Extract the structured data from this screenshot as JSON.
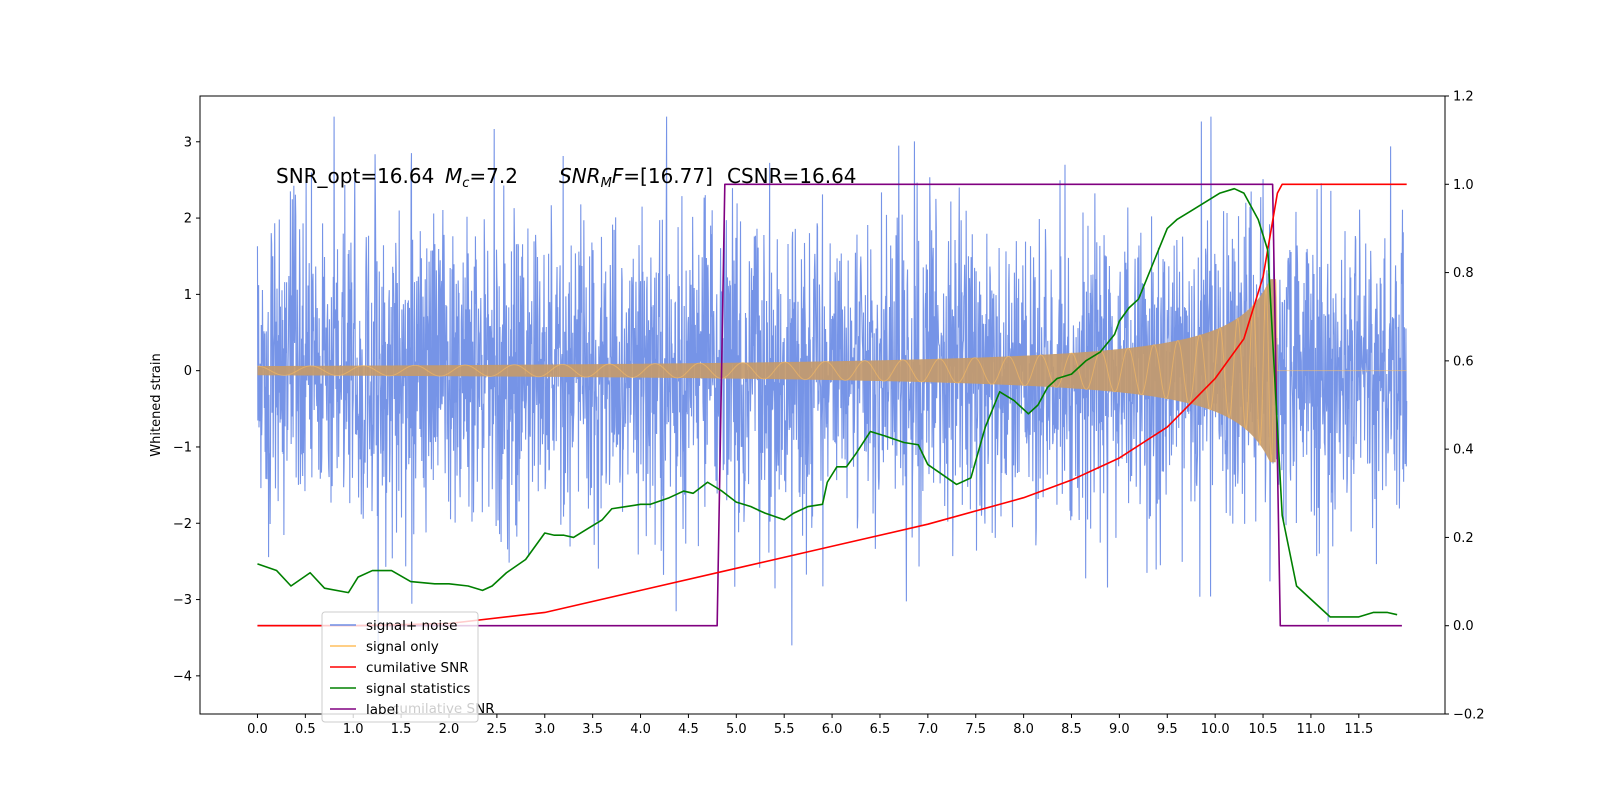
{
  "chart_data": {
    "type": "line",
    "ylabel": "Whitened strain",
    "xlim": [
      -0.6,
      12.4
    ],
    "ylim_left": [
      -4.5,
      3.6
    ],
    "ylim_right": [
      -0.2,
      1.2
    ],
    "x_ticks": [
      "0.0",
      "0.5",
      "1.0",
      "1.5",
      "2.0",
      "2.5",
      "3.0",
      "3.5",
      "4.0",
      "4.5",
      "5.0",
      "5.5",
      "6.0",
      "6.5",
      "7.0",
      "7.5",
      "8.0",
      "8.5",
      "9.0",
      "9.5",
      "10.0",
      "10.5",
      "11.0",
      "11.5"
    ],
    "y_ticks_left": [
      "3",
      "2",
      "1",
      "0",
      "−1",
      "−2",
      "−3",
      "−4"
    ],
    "y_ticks_right": [
      "1.2",
      "1.0",
      "0.8",
      "0.6",
      "0.4",
      "0.2",
      "0.0",
      "−0.2"
    ],
    "annotation": {
      "snr_opt": "SNR_opt=16.64",
      "mc_sym": "M",
      "mc_sub": "c",
      "mc_val": "=7.2",
      "snr_sym": "SNR",
      "snr_sub": "M",
      "snr_f": "F",
      "snr_val": "=[16.77]",
      "csnr": "CSNR=16.64"
    },
    "legend": {
      "position": "lower-left",
      "entries": [
        {
          "label": "signal+ noise",
          "color": "#6f8ee6"
        },
        {
          "label": "signal only",
          "color": "#ffbf5f"
        },
        {
          "label": "cumilative SNR",
          "color": "#ff0000"
        },
        {
          "label": "signal statistics",
          "color": "#008000"
        },
        {
          "label": "label",
          "color": "#800080"
        }
      ],
      "hidden_text": "cumilative SNR"
    },
    "series": [
      {
        "name": "signal+ noise",
        "axis": "left",
        "color": "#6f8ee6",
        "description": "Whitened noisy strain, x 0 to 12, amplitude approx. -3.7 to 3.3",
        "x_range": [
          0,
          12
        ],
        "typical_peak": 2.4,
        "max": 3.33,
        "min": -3.72
      },
      {
        "name": "signal only",
        "axis": "left",
        "color": "#ffbf5f",
        "description": "Chirp waveform growing to merger near x=10.65, zero after",
        "x_range": [
          0,
          12
        ],
        "merger_x": 10.65,
        "peak_amplitude": 1.2
      },
      {
        "name": "cumilative SNR",
        "axis": "right",
        "color": "#ff0000",
        "x": [
          0.0,
          1.0,
          2.0,
          3.0,
          4.0,
          5.0,
          6.0,
          7.0,
          8.0,
          8.5,
          9.0,
          9.5,
          10.0,
          10.3,
          10.5,
          10.65,
          10.7,
          12.0
        ],
        "y": [
          0.0,
          0.0,
          0.005,
          0.03,
          0.08,
          0.13,
          0.18,
          0.23,
          0.29,
          0.33,
          0.38,
          0.45,
          0.56,
          0.65,
          0.79,
          0.98,
          1.0,
          1.0
        ]
      },
      {
        "name": "signal statistics",
        "axis": "right",
        "color": "#008000",
        "x": [
          0.0,
          0.2,
          0.35,
          0.55,
          0.7,
          0.95,
          1.05,
          1.2,
          1.4,
          1.6,
          1.85,
          2.0,
          2.2,
          2.35,
          2.45,
          2.6,
          2.8,
          3.0,
          3.1,
          3.2,
          3.3,
          3.45,
          3.6,
          3.7,
          3.85,
          4.0,
          4.1,
          4.3,
          4.45,
          4.55,
          4.7,
          4.85,
          5.0,
          5.15,
          5.3,
          5.5,
          5.6,
          5.75,
          5.9,
          5.95,
          6.05,
          6.15,
          6.25,
          6.4,
          6.55,
          6.75,
          6.9,
          7.0,
          7.1,
          7.3,
          7.45,
          7.6,
          7.75,
          7.9,
          8.05,
          8.15,
          8.25,
          8.35,
          8.5,
          8.65,
          8.8,
          8.95,
          9.0,
          9.1,
          9.2,
          9.35,
          9.5,
          9.6,
          9.75,
          9.9,
          10.05,
          10.2,
          10.3,
          10.45,
          10.55,
          10.7,
          10.85,
          11.0,
          11.2,
          11.5,
          11.65,
          11.8,
          11.9
        ],
        "y": [
          0.14,
          0.125,
          0.09,
          0.12,
          0.085,
          0.075,
          0.11,
          0.125,
          0.125,
          0.1,
          0.095,
          0.095,
          0.09,
          0.08,
          0.09,
          0.12,
          0.15,
          0.21,
          0.205,
          0.205,
          0.2,
          0.22,
          0.24,
          0.265,
          0.27,
          0.275,
          0.275,
          0.29,
          0.305,
          0.3,
          0.325,
          0.305,
          0.28,
          0.27,
          0.255,
          0.24,
          0.255,
          0.27,
          0.275,
          0.325,
          0.36,
          0.36,
          0.39,
          0.44,
          0.43,
          0.415,
          0.41,
          0.365,
          0.35,
          0.32,
          0.335,
          0.45,
          0.53,
          0.51,
          0.48,
          0.5,
          0.54,
          0.56,
          0.57,
          0.6,
          0.62,
          0.66,
          0.69,
          0.72,
          0.74,
          0.82,
          0.9,
          0.92,
          0.94,
          0.96,
          0.98,
          0.99,
          0.98,
          0.92,
          0.85,
          0.25,
          0.09,
          0.06,
          0.02,
          0.02,
          0.03,
          0.03,
          0.025
        ]
      },
      {
        "name": "label",
        "axis": "right",
        "color": "#800080",
        "x": [
          0.0,
          4.8,
          4.88,
          10.6,
          10.68,
          11.95
        ],
        "y": [
          0.0,
          0.0,
          1.0,
          1.0,
          0.0,
          0.0
        ]
      }
    ]
  }
}
